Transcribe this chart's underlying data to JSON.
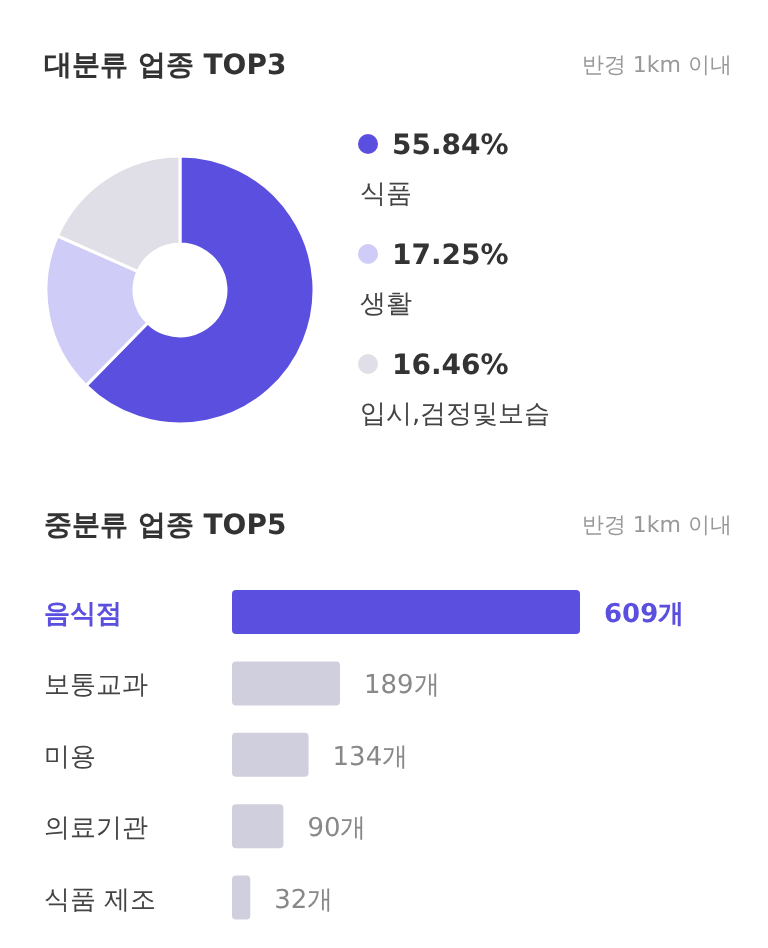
{
  "chart_data": [
    {
      "type": "donut",
      "title": "대분류 업종 TOP3",
      "subtitle": "반경 1km 이내",
      "legend": "right",
      "categories": [
        "식품",
        "생활",
        "입시,검정및보습"
      ],
      "values": [
        55.84,
        17.25,
        16.46
      ],
      "value_labels": [
        "55.84%",
        "17.25%",
        "16.46%"
      ],
      "colors": [
        "#5b4fe0",
        "#cfcdf7",
        "#e0dfe8"
      ]
    },
    {
      "type": "bar",
      "orientation": "horizontal",
      "title": "중분류 업종 TOP5",
      "subtitle": "반경 1km 이내",
      "categories": [
        "음식점",
        "보통교과",
        "미용",
        "의료기관",
        "식품 제조"
      ],
      "values": [
        609,
        189,
        134,
        90,
        32
      ],
      "value_labels": [
        "609개",
        "189개",
        "134개",
        "90개",
        "32개"
      ],
      "colors": [
        "#5b4fe0",
        "#d0cfdd",
        "#d0cfdd",
        "#d0cfdd",
        "#d0cfdd"
      ]
    }
  ]
}
